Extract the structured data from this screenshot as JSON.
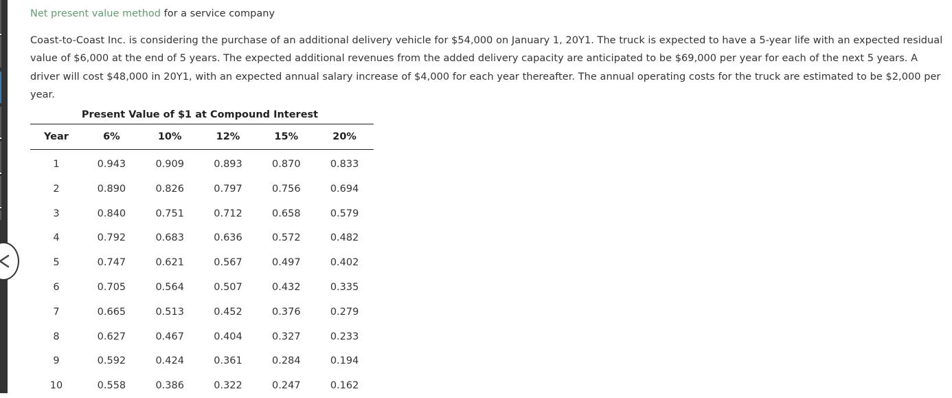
{
  "header": {
    "title_link": "Net present value method",
    "title_rest": " for a service company"
  },
  "problem": {
    "text": "Coast-to-Coast Inc. is considering the purchase of an additional delivery vehicle for $54,000 on January 1, 20Y1. The truck is expected to have a 5-year life with an expected residual value of $6,000 at the end of 5 years. The expected additional revenues from the added delivery capacity are anticipated to be $69,000 per year for each of the next 5 years. A driver will cost $48,000 in 20Y1, with an expected annual salary increase of $4,000 for each year thereafter. The annual operating costs for the truck are estimated to be $2,000 per year."
  },
  "pv_table": {
    "caption": "Present Value of $1 at Compound Interest",
    "headers": [
      "Year",
      "6%",
      "10%",
      "12%",
      "15%",
      "20%"
    ],
    "rows": [
      [
        "1",
        "0.943",
        "0.909",
        "0.893",
        "0.870",
        "0.833"
      ],
      [
        "2",
        "0.890",
        "0.826",
        "0.797",
        "0.756",
        "0.694"
      ],
      [
        "3",
        "0.840",
        "0.751",
        "0.712",
        "0.658",
        "0.579"
      ],
      [
        "4",
        "0.792",
        "0.683",
        "0.636",
        "0.572",
        "0.482"
      ],
      [
        "5",
        "0.747",
        "0.621",
        "0.567",
        "0.497",
        "0.402"
      ],
      [
        "6",
        "0.705",
        "0.564",
        "0.507",
        "0.432",
        "0.335"
      ],
      [
        "7",
        "0.665",
        "0.513",
        "0.452",
        "0.376",
        "0.279"
      ],
      [
        "8",
        "0.627",
        "0.467",
        "0.404",
        "0.327",
        "0.233"
      ],
      [
        "9",
        "0.592",
        "0.424",
        "0.361",
        "0.284",
        "0.194"
      ],
      [
        "10",
        "0.558",
        "0.386",
        "0.322",
        "0.247",
        "0.162"
      ]
    ]
  },
  "ui": {
    "collapse_button_icon": "chevron-left-icon",
    "link_color": "#5f9e6e",
    "rail_color": "#333333",
    "rail_active_color": "#2f7fc1"
  }
}
